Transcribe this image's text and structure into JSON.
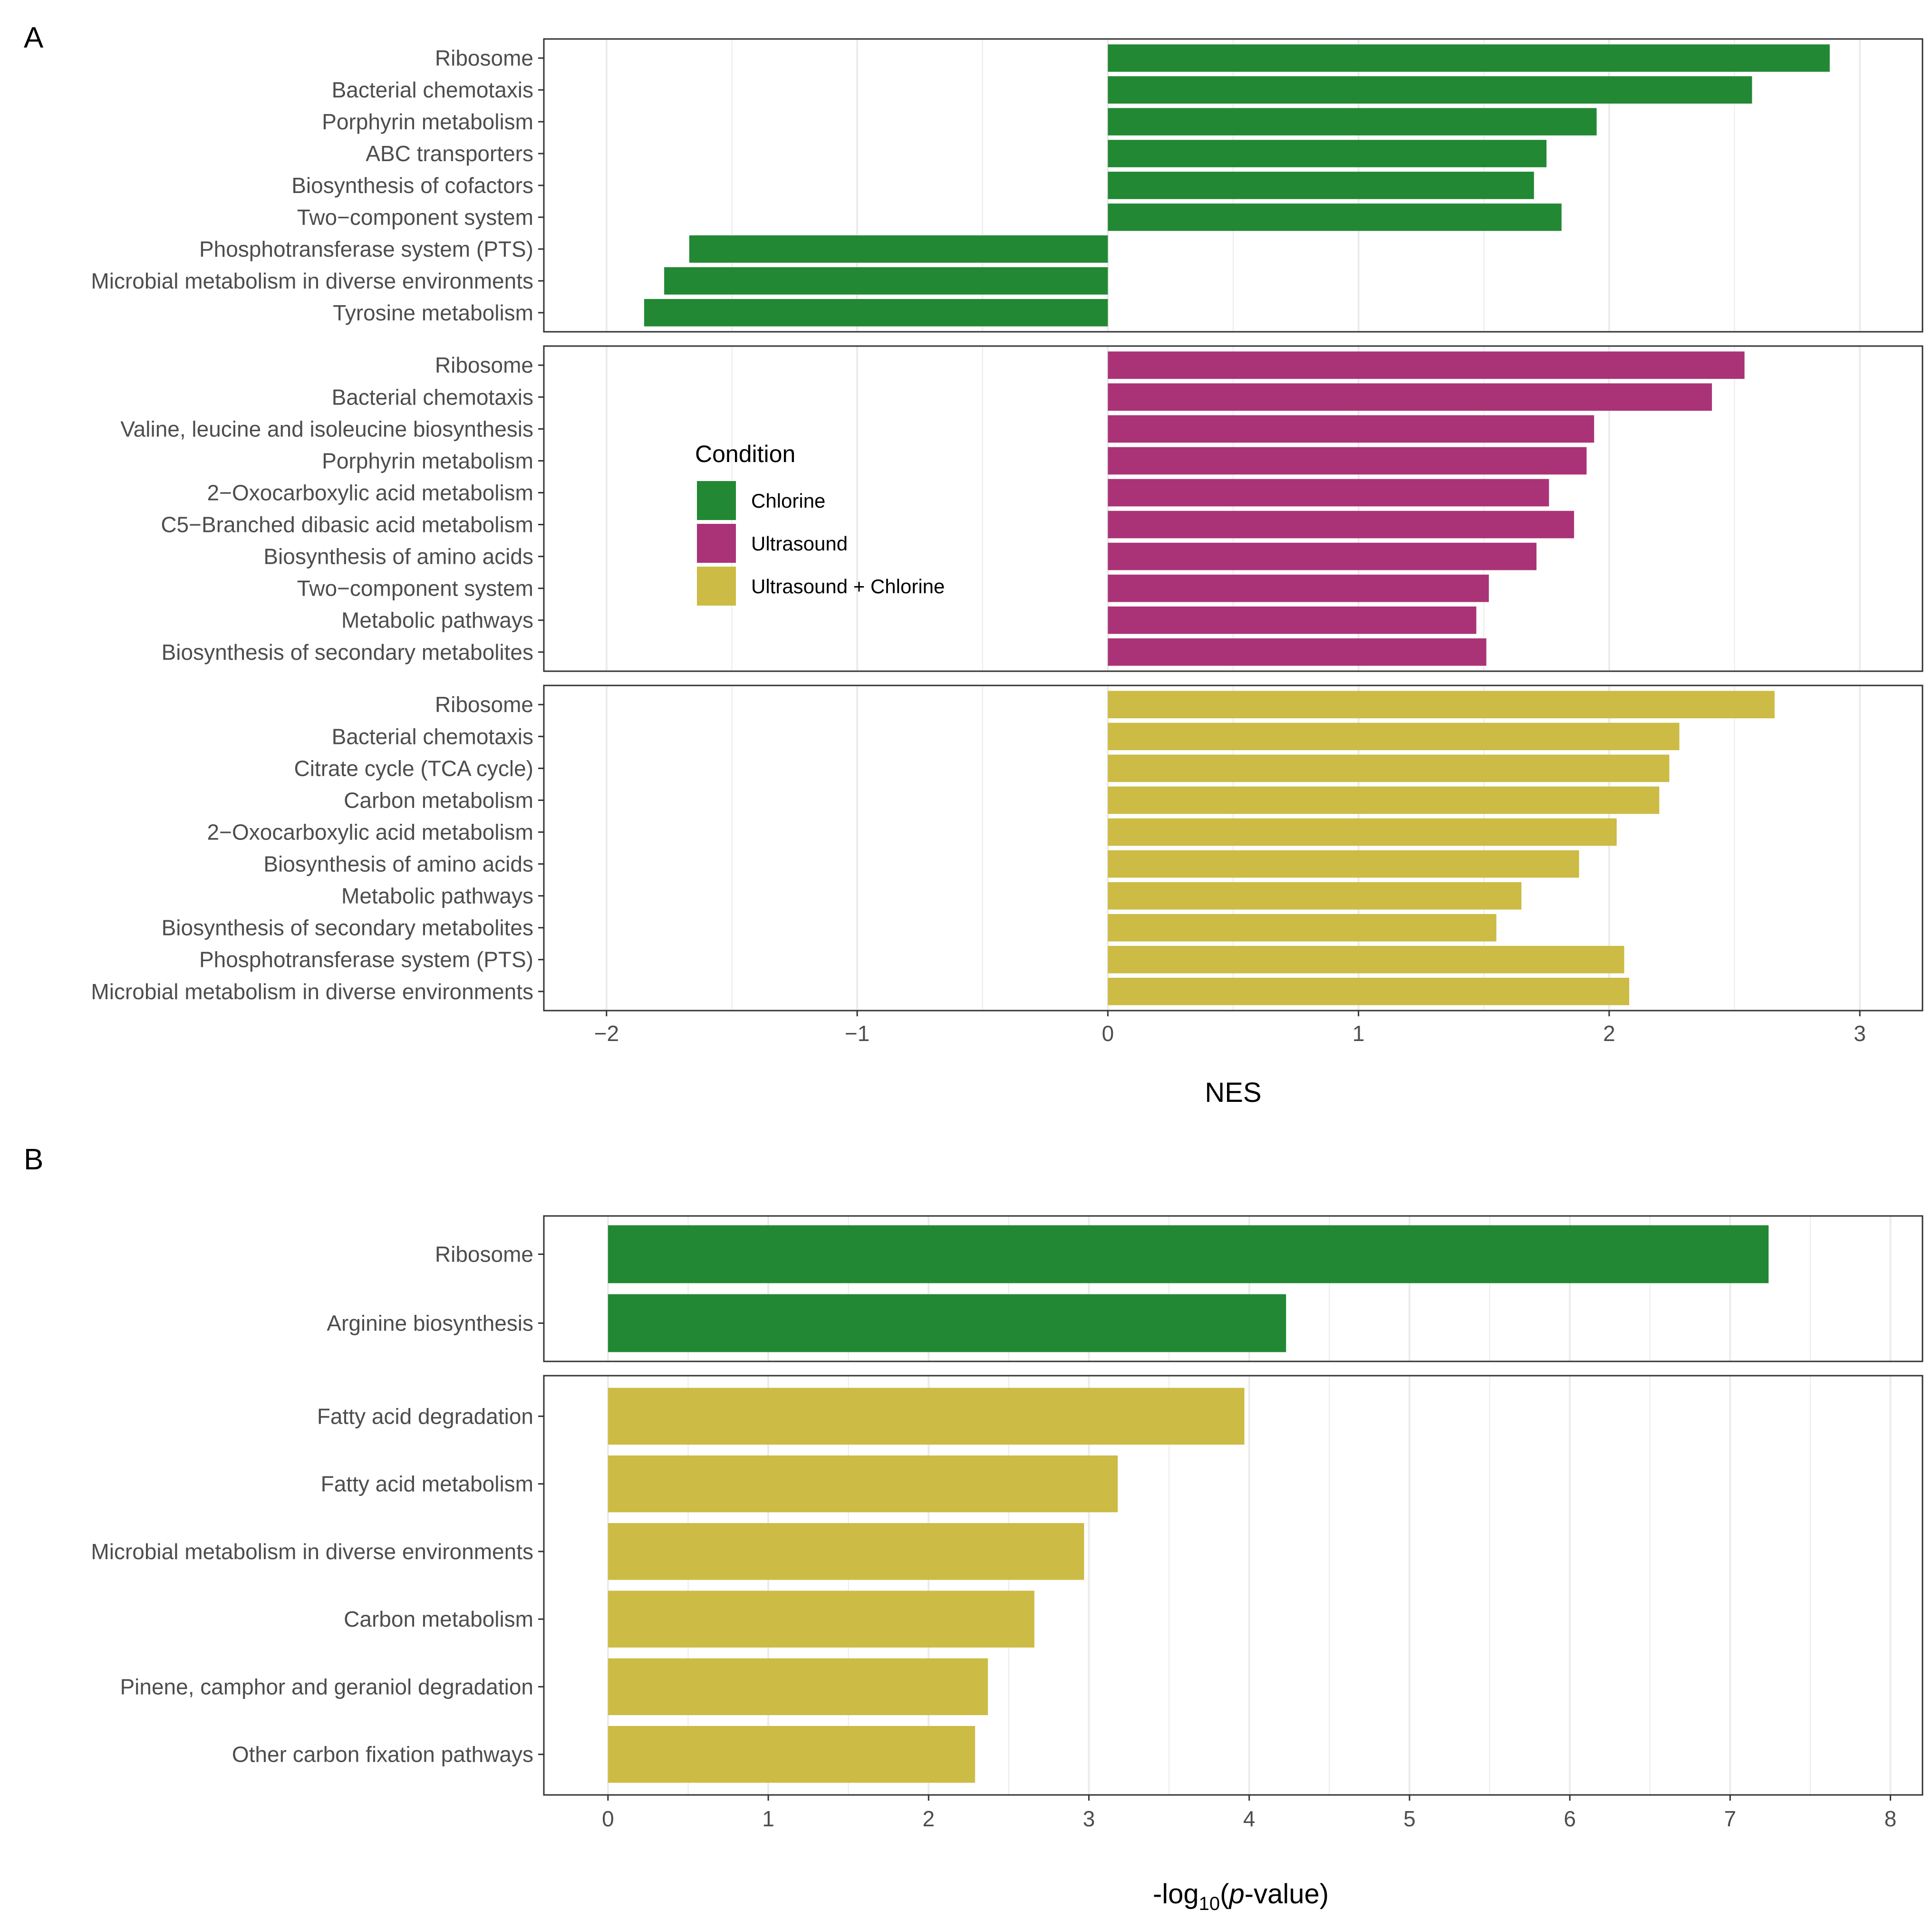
{
  "colors": {
    "chlorine": "#228833",
    "ultrasound": "#AA3377",
    "ultrasound_chlorine": "#CCBB44",
    "grid": "#ebebeb",
    "frame": "#333333"
  },
  "chart_data": [
    {
      "panel_label": "A",
      "type": "bar",
      "orientation": "horizontal",
      "xlabel": "NES",
      "xlim": [
        -2.25,
        3.25
      ],
      "xticks": [
        -2,
        -1,
        0,
        1,
        2,
        3
      ],
      "xtick_labels": [
        "−2",
        "−1",
        "0",
        "1",
        "2",
        "3"
      ],
      "legend": {
        "title": "Condition",
        "position": "inside-center-left",
        "entries": [
          {
            "label": "Chlorine",
            "color": "#228833"
          },
          {
            "label": "Ultrasound",
            "color": "#AA3377"
          },
          {
            "label": "Ultrasound + Chlorine",
            "color": "#CCBB44"
          }
        ]
      },
      "facets": [
        {
          "condition": "Chlorine",
          "color": "#228833",
          "categories": [
            "Ribosome",
            "Bacterial chemotaxis",
            "Porphyrin metabolism",
            "ABC transporters",
            "Biosynthesis of cofactors",
            "Two−component system",
            "Phosphotransferase system (PTS)",
            "Microbial metabolism in diverse environments",
            "Tyrosine metabolism"
          ],
          "values": [
            2.88,
            2.57,
            1.95,
            1.75,
            1.7,
            1.81,
            -1.67,
            -1.77,
            -1.85
          ]
        },
        {
          "condition": "Ultrasound",
          "color": "#AA3377",
          "categories": [
            "Ribosome",
            "Bacterial chemotaxis",
            "Valine, leucine and isoleucine biosynthesis",
            "Porphyrin metabolism",
            "2−Oxocarboxylic acid metabolism",
            "C5−Branched dibasic acid metabolism",
            "Biosynthesis of amino acids",
            "Two−component system",
            "Metabolic pathways",
            "Biosynthesis of secondary metabolites"
          ],
          "values": [
            2.54,
            2.41,
            1.94,
            1.91,
            1.76,
            1.86,
            1.71,
            1.52,
            1.47,
            1.51
          ]
        },
        {
          "condition": "Ultrasound + Chlorine",
          "color": "#CCBB44",
          "categories": [
            "Ribosome",
            "Bacterial chemotaxis",
            "Citrate cycle (TCA cycle)",
            "Carbon metabolism",
            "2−Oxocarboxylic acid metabolism",
            "Biosynthesis of amino acids",
            "Metabolic pathways",
            "Biosynthesis of secondary metabolites",
            "Phosphotransferase system (PTS)",
            "Microbial metabolism in diverse environments"
          ],
          "values": [
            2.66,
            2.28,
            2.24,
            2.2,
            2.03,
            1.88,
            1.65,
            1.55,
            2.06,
            2.08
          ]
        }
      ]
    },
    {
      "panel_label": "B",
      "type": "bar",
      "orientation": "horizontal",
      "xlabel_prefix": "-log",
      "xlabel_sub": "10",
      "xlabel_open": "(",
      "xlabel_italic": "p",
      "xlabel_suffix": "-value)",
      "xlim": [
        -0.4,
        8.2
      ],
      "xticks": [
        0,
        1,
        2,
        3,
        4,
        5,
        6,
        7,
        8
      ],
      "xtick_labels": [
        "0",
        "1",
        "2",
        "3",
        "4",
        "5",
        "6",
        "7",
        "8"
      ],
      "facets": [
        {
          "condition": "Chlorine",
          "color": "#228833",
          "categories": [
            "Ribosome",
            "Arginine biosynthesis"
          ],
          "values": [
            7.24,
            4.23
          ]
        },
        {
          "condition": "Ultrasound + Chlorine",
          "color": "#CCBB44",
          "categories": [
            "Fatty acid degradation",
            "Fatty acid metabolism",
            "Microbial metabolism in diverse environments",
            "Carbon metabolism",
            "Pinene, camphor and geraniol degradation",
            "Other carbon fixation pathways"
          ],
          "values": [
            3.97,
            3.18,
            2.97,
            2.66,
            2.37,
            2.29
          ]
        }
      ]
    }
  ]
}
